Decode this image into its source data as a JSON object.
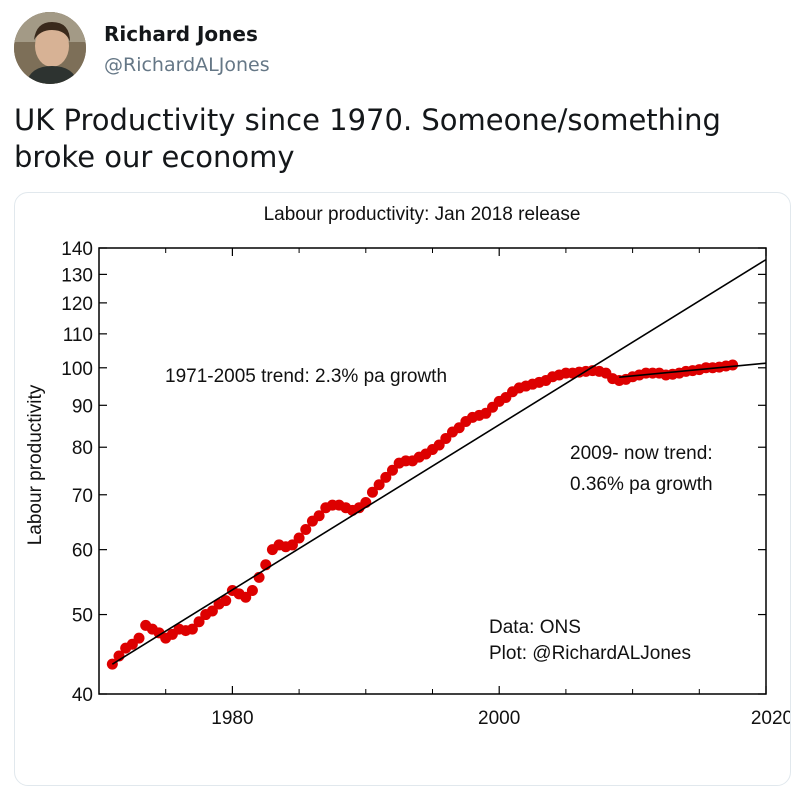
{
  "tweet": {
    "display_name": "Richard Jones",
    "handle": "@RichardALJones",
    "text": "UK Productivity since 1970.  Someone/something broke our economy",
    "avatar_icon": "user-avatar-photo"
  },
  "chart_data": {
    "type": "scatter",
    "title": "Labour productivity: Jan 2018 release",
    "ylabel": "Labour productivity",
    "xlabel": "",
    "xlim": [
      1970,
      2020
    ],
    "ylim": [
      40,
      140
    ],
    "yscale": "log",
    "x_ticks": [
      1980,
      2000,
      2020
    ],
    "y_ticks": [
      40,
      50,
      60,
      70,
      80,
      90,
      100,
      110,
      120,
      130,
      140
    ],
    "grid": false,
    "point_color": "#dd0000",
    "line_color": "#000000",
    "series": [
      {
        "x": [
          1971.0,
          1971.5,
          1972.0,
          1972.5,
          1973.0,
          1973.5,
          1974.0,
          1974.5,
          1975.0,
          1975.5,
          1976.0,
          1976.5,
          1977.0,
          1977.5,
          1978.0,
          1978.5,
          1979.0,
          1979.5,
          1980.0,
          1980.5,
          1981.0,
          1981.5,
          1982.0,
          1982.5,
          1983.0,
          1983.5,
          1984.0,
          1984.5,
          1985.0,
          1985.5,
          1986.0,
          1986.5,
          1987.0,
          1987.5,
          1988.0,
          1988.5,
          1989.0,
          1989.5,
          1990.0,
          1990.5,
          1991.0,
          1991.5,
          1992.0,
          1992.5,
          1993.0,
          1993.5,
          1994.0,
          1994.5,
          1995.0,
          1995.5,
          1996.0,
          1996.5,
          1997.0,
          1997.5,
          1998.0,
          1998.5,
          1999.0,
          1999.5,
          2000.0,
          2000.5,
          2001.0,
          2001.5,
          2002.0,
          2002.5,
          2003.0,
          2003.5,
          2004.0,
          2004.5,
          2005.0,
          2005.5,
          2006.0,
          2006.5,
          2007.0,
          2007.5,
          2008.0,
          2008.5,
          2009.0,
          2009.5,
          2010.0,
          2010.5,
          2011.0,
          2011.5,
          2012.0,
          2012.5,
          2013.0,
          2013.5,
          2014.0,
          2014.5,
          2015.0,
          2015.5,
          2016.0,
          2016.5,
          2017.0,
          2017.5
        ],
        "y": [
          43.5,
          44.5,
          45.5,
          46.0,
          46.8,
          48.5,
          48.0,
          47.5,
          46.8,
          47.3,
          48.0,
          47.8,
          48.0,
          49.0,
          50.0,
          50.5,
          51.5,
          52.0,
          53.5,
          53.0,
          52.5,
          53.5,
          55.5,
          57.5,
          60.0,
          60.8,
          60.5,
          60.8,
          62.0,
          63.5,
          65.0,
          66.0,
          67.5,
          68.0,
          68.0,
          67.5,
          67.0,
          67.5,
          68.5,
          70.5,
          72.0,
          73.5,
          75.0,
          76.5,
          77.0,
          77.0,
          77.8,
          78.5,
          79.5,
          80.5,
          82.0,
          83.5,
          84.5,
          86.0,
          87.0,
          87.5,
          88.0,
          89.5,
          91.0,
          92.0,
          93.5,
          94.5,
          95.0,
          95.5,
          96.0,
          96.5,
          97.5,
          98.0,
          98.5,
          98.5,
          98.8,
          99.0,
          99.2,
          99.0,
          98.5,
          97.0,
          96.5,
          96.8,
          97.5,
          98.0,
          98.5,
          98.5,
          98.5,
          98.0,
          98.2,
          98.5,
          99.0,
          99.2,
          99.5,
          100.0,
          100.0,
          100.2,
          100.5,
          100.8
        ]
      }
    ],
    "trend_lines": [
      {
        "name": "1971-2005 trend: 2.3% pa growth",
        "x": [
          1971,
          2020
        ],
        "y": [
          43.5,
          135.5
        ]
      },
      {
        "name": "2009- now trend: 0.36% pa growth",
        "x": [
          2009,
          2020
        ],
        "y": [
          97.4,
          101.3
        ]
      }
    ],
    "annotations": {
      "trend1": "1971-2005 trend: 2.3% pa growth",
      "trend2_line1": "2009- now trend:",
      "trend2_line2": "0.36% pa growth",
      "data_source": "Data: ONS",
      "plot_credit": "Plot: @RichardALJones"
    }
  }
}
